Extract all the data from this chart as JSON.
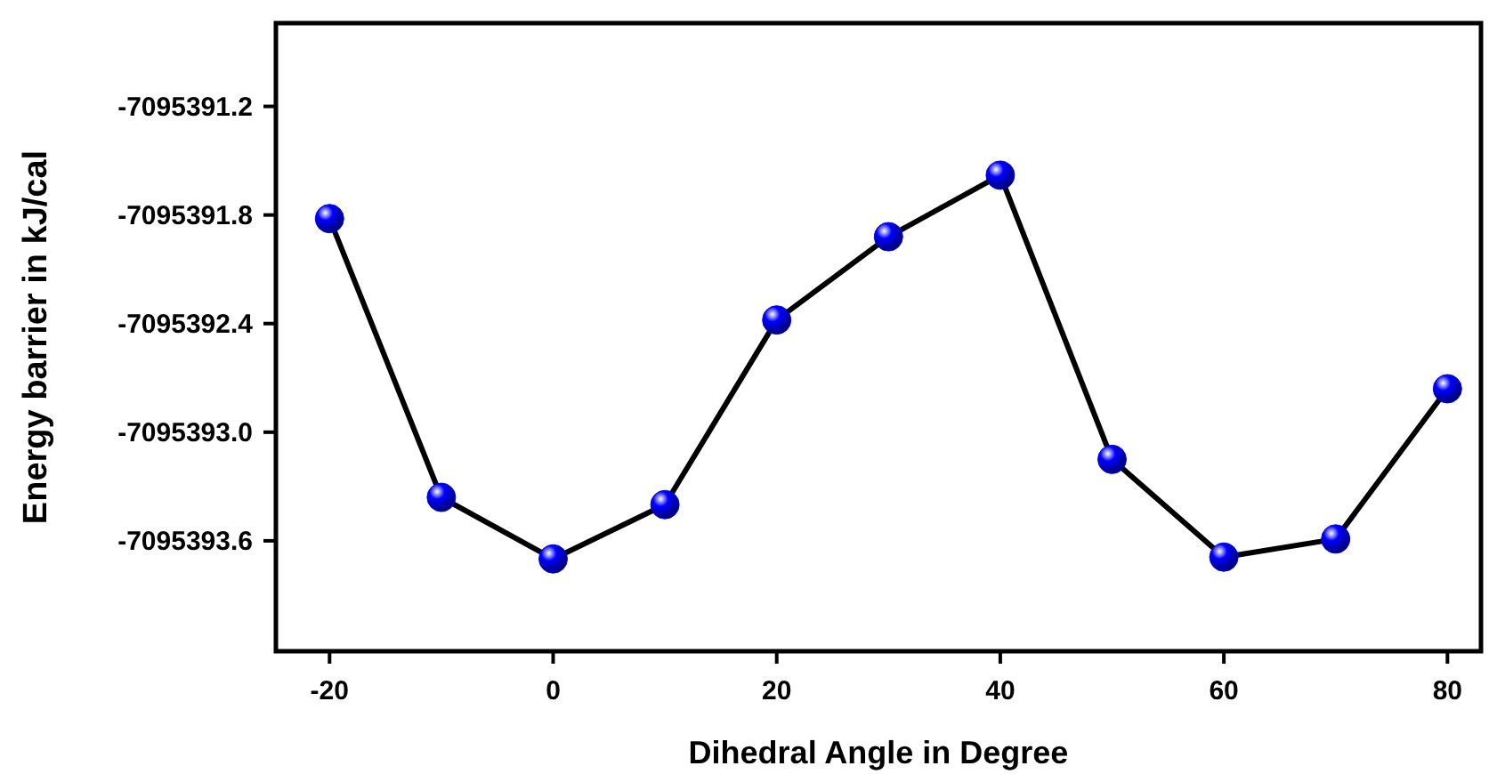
{
  "chart_data": {
    "type": "line",
    "xlabel": "Dihedral Angle in Degree",
    "ylabel": "Energy barrier in kJ/cal",
    "x": [
      -20,
      -10,
      0,
      10,
      20,
      30,
      40,
      50,
      60,
      70,
      80
    ],
    "series": [
      {
        "color": "#0000ff",
        "values": [
          -7095391.82,
          -7095393.36,
          -7095393.7,
          -7095393.4,
          -7095392.38,
          -7095391.92,
          -7095391.58,
          -7095393.15,
          -7095393.69,
          -7095393.59,
          -7095392.76
        ]
      }
    ],
    "xlim": [
      -24.8,
      83
    ],
    "ylim": [
      -7095394.21,
      -7095390.74
    ],
    "xticks": [
      -20,
      0,
      20,
      40,
      60,
      80
    ],
    "yticks": [
      -7095393.6,
      {
        "value": -7095393.0,
        "label": "-7095393.0"
      },
      -7095392.4,
      -7095391.8,
      -7095391.2
    ],
    "marker": "circle",
    "line_style": "solid"
  }
}
